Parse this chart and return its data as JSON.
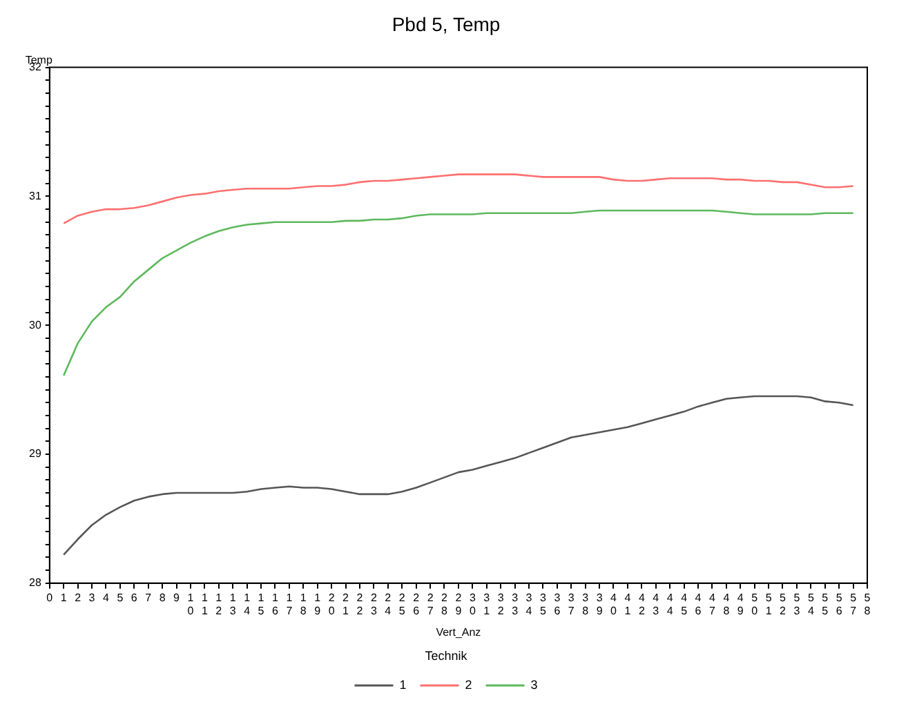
{
  "chart_data": {
    "type": "line",
    "title": "Pbd 5, Temp",
    "xlabel": "Vert_Anz",
    "ylabel": "Temp",
    "legend_title": "Technik",
    "legend": "bottom",
    "grid": false,
    "marker": "none",
    "line_style": "solid",
    "x": [
      1,
      2,
      3,
      4,
      5,
      6,
      7,
      8,
      9,
      10,
      11,
      12,
      13,
      14,
      15,
      16,
      17,
      18,
      19,
      20,
      21,
      22,
      23,
      24,
      25,
      26,
      27,
      28,
      29,
      30,
      31,
      32,
      33,
      34,
      35,
      36,
      37,
      38,
      39,
      40,
      41,
      42,
      43,
      44,
      45,
      46,
      47,
      48,
      49,
      50,
      51,
      52,
      53,
      54,
      55,
      56,
      57
    ],
    "xlim": [
      0,
      58
    ],
    "xticks": [
      0,
      1,
      2,
      3,
      4,
      5,
      6,
      7,
      8,
      9,
      10,
      11,
      12,
      13,
      14,
      15,
      16,
      17,
      18,
      19,
      20,
      21,
      22,
      23,
      24,
      25,
      26,
      27,
      28,
      29,
      30,
      31,
      32,
      33,
      34,
      35,
      36,
      37,
      38,
      39,
      40,
      41,
      42,
      43,
      44,
      45,
      46,
      47,
      48,
      49,
      50,
      51,
      52,
      53,
      54,
      55,
      56,
      57,
      58
    ],
    "ylim": [
      28,
      32
    ],
    "yticks": [
      28,
      {
        "value": 28.1,
        "label": null
      },
      {
        "value": 28.2,
        "label": null
      },
      {
        "value": 28.3,
        "label": null
      },
      {
        "value": 28.4,
        "label": null
      },
      {
        "value": 28.5,
        "label": null
      },
      {
        "value": 28.6,
        "label": null
      },
      {
        "value": 28.7,
        "label": null
      },
      {
        "value": 28.8,
        "label": null
      },
      {
        "value": 28.9,
        "label": null
      },
      29,
      {
        "value": 29.1,
        "label": null
      },
      {
        "value": 29.2,
        "label": null
      },
      {
        "value": 29.3,
        "label": null
      },
      {
        "value": 29.4,
        "label": null
      },
      {
        "value": 29.5,
        "label": null
      },
      {
        "value": 29.6,
        "label": null
      },
      {
        "value": 29.7,
        "label": null
      },
      {
        "value": 29.8,
        "label": null
      },
      {
        "value": 29.9,
        "label": null
      },
      30,
      {
        "value": 30.1,
        "label": null
      },
      {
        "value": 30.2,
        "label": null
      },
      {
        "value": 30.3,
        "label": null
      },
      {
        "value": 30.4,
        "label": null
      },
      {
        "value": 30.5,
        "label": null
      },
      {
        "value": 30.6,
        "label": null
      },
      {
        "value": 30.7,
        "label": null
      },
      {
        "value": 30.8,
        "label": null
      },
      {
        "value": 30.9,
        "label": null
      },
      31,
      {
        "value": 31.1,
        "label": null
      },
      {
        "value": 31.2,
        "label": null
      },
      {
        "value": 31.3,
        "label": null
      },
      {
        "value": 31.4,
        "label": null
      },
      {
        "value": 31.5,
        "label": null
      },
      {
        "value": 31.6,
        "label": null
      },
      {
        "value": 31.7,
        "label": null
      },
      {
        "value": 31.8,
        "label": null
      },
      {
        "value": 31.9,
        "label": null
      },
      32
    ],
    "series": [
      {
        "name": "1",
        "color": "#555555",
        "values": [
          28.22,
          28.34,
          28.45,
          28.53,
          28.59,
          28.64,
          28.67,
          28.69,
          28.7,
          28.7,
          28.7,
          28.7,
          28.7,
          28.71,
          28.73,
          28.74,
          28.75,
          28.74,
          28.74,
          28.73,
          28.71,
          28.69,
          28.69,
          28.69,
          28.71,
          28.74,
          28.78,
          28.82,
          28.86,
          28.88,
          28.91,
          28.94,
          28.97,
          29.01,
          29.05,
          29.09,
          29.13,
          29.15,
          29.17,
          29.19,
          29.21,
          29.24,
          29.27,
          29.3,
          29.33,
          29.37,
          29.4,
          29.43,
          29.44,
          29.45,
          29.45,
          29.45,
          29.45,
          29.44,
          29.41,
          29.4,
          29.38
        ]
      },
      {
        "name": "2",
        "color": "#ff6f6f",
        "values": [
          30.79,
          30.85,
          30.88,
          30.9,
          30.9,
          30.91,
          30.93,
          30.96,
          30.99,
          31.01,
          31.02,
          31.04,
          31.05,
          31.06,
          31.06,
          31.06,
          31.06,
          31.07,
          31.08,
          31.08,
          31.09,
          31.11,
          31.12,
          31.12,
          31.13,
          31.14,
          31.15,
          31.16,
          31.17,
          31.17,
          31.17,
          31.17,
          31.17,
          31.16,
          31.15,
          31.15,
          31.15,
          31.15,
          31.15,
          31.13,
          31.12,
          31.12,
          31.13,
          31.14,
          31.14,
          31.14,
          31.14,
          31.13,
          31.13,
          31.12,
          31.12,
          31.11,
          31.11,
          31.09,
          31.07,
          31.07,
          31.08
        ]
      },
      {
        "name": "3",
        "color": "#5cb85c",
        "values": [
          29.61,
          29.86,
          30.03,
          30.14,
          30.22,
          30.34,
          30.43,
          30.52,
          30.58,
          30.64,
          30.69,
          30.73,
          30.76,
          30.78,
          30.79,
          30.8,
          30.8,
          30.8,
          30.8,
          30.8,
          30.81,
          30.81,
          30.82,
          30.82,
          30.83,
          30.85,
          30.86,
          30.86,
          30.86,
          30.86,
          30.87,
          30.87,
          30.87,
          30.87,
          30.87,
          30.87,
          30.87,
          30.88,
          30.89,
          30.89,
          30.89,
          30.89,
          30.89,
          30.89,
          30.89,
          30.89,
          30.89,
          30.88,
          30.87,
          30.86,
          30.86,
          30.86,
          30.86,
          30.86,
          30.87,
          30.87,
          30.87
        ]
      }
    ]
  }
}
